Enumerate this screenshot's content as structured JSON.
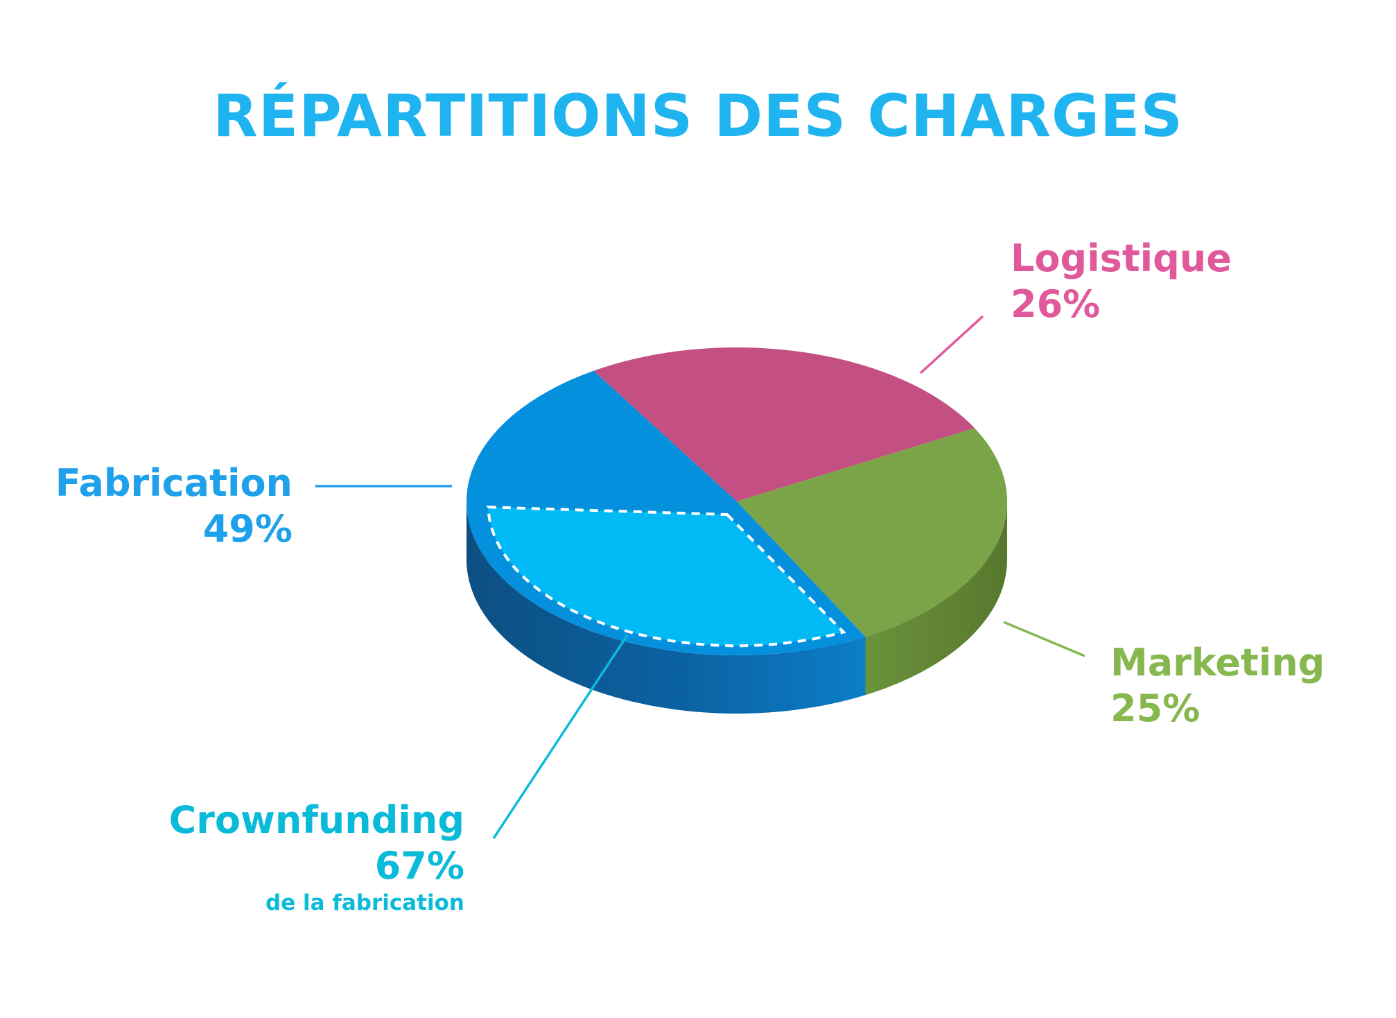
{
  "chart_data": {
    "type": "pie",
    "title": "RÉPARTITIONS DES CHARGES",
    "slices": [
      {
        "label": "Logistique",
        "value": 26,
        "value_label": "26%",
        "color": "#c44f82",
        "label_color": "#e0599a"
      },
      {
        "label": "Marketing",
        "value": 25,
        "value_label": "25%",
        "color": "#7ba448",
        "label_color": "#86b84f"
      },
      {
        "label": "Fabrication",
        "value": 49,
        "value_label": "49%",
        "color": "#0590de",
        "label_color": "#1fa0ea"
      }
    ],
    "sub_slice": {
      "label": "Crownfunding",
      "value": 67,
      "value_label": "67%",
      "note": "de la fabrication",
      "parent": "Fabrication",
      "color": "#00b9f5",
      "label_color": "#0abbd9"
    },
    "style": "3d-disc",
    "legend": "none"
  }
}
